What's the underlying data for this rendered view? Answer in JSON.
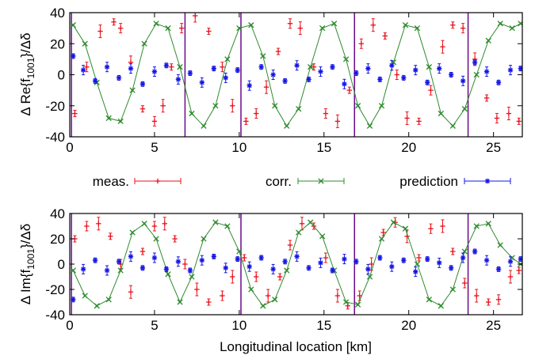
{
  "colors": {
    "meas": "#e8121c",
    "corr": "#2e8b2e",
    "prediction": "#1414e6",
    "vline": "#6a0a8a"
  },
  "legend": {
    "meas": "meas.",
    "corr": "corr.",
    "prediction": "prediction"
  },
  "chart_data": [
    {
      "type": "scatter",
      "panel": "top",
      "ylabel": "Δ Re{f1001}/Δδ",
      "ylabel_main": "Δ Re{f",
      "ylabel_sub": "1001",
      "ylabel_tail": "}/Δδ",
      "xlabel": "",
      "xlim": [
        0,
        26.7
      ],
      "ylim": [
        -40,
        40
      ],
      "xticks": [
        0,
        5,
        10,
        15,
        20,
        25
      ],
      "yticks": [
        -40,
        -20,
        0,
        20,
        40
      ],
      "ip_lines_km": [
        0.1,
        6.8,
        10.1,
        16.8,
        23.5
      ],
      "errorbars": true,
      "series": [
        {
          "name": "meas.",
          "marker": "+",
          "x": [
            0.3,
            1.0,
            1.8,
            2.6,
            3.0,
            3.6,
            4.3,
            5.0,
            5.5,
            6.0,
            6.6,
            7.4,
            8.2,
            9.0,
            9.6,
            10.4,
            11.0,
            11.6,
            12.3,
            13.0,
            13.6,
            14.4,
            15.1,
            15.8,
            16.5,
            17.2,
            17.9,
            18.6,
            19.3,
            19.9,
            20.6,
            21.3,
            22.0,
            22.6,
            23.2,
            23.9,
            24.6,
            25.2,
            25.9,
            26.5
          ],
          "y": [
            -25,
            5,
            28,
            34,
            30,
            8,
            -22,
            -30,
            -20,
            5,
            30,
            38,
            28,
            5,
            -20,
            -30,
            -25,
            -8,
            15,
            33,
            30,
            5,
            -25,
            -30,
            -10,
            20,
            32,
            25,
            0,
            -28,
            -30,
            -10,
            18,
            32,
            30,
            10,
            -15,
            -28,
            -25,
            -30
          ]
        },
        {
          "name": "corr.",
          "marker": "x",
          "x": [
            0.2,
            0.9,
            1.6,
            2.3,
            3.0,
            3.7,
            4.4,
            5.1,
            5.8,
            6.5,
            7.2,
            7.9,
            8.6,
            9.3,
            10.0,
            10.7,
            11.4,
            12.1,
            12.8,
            13.5,
            14.2,
            14.9,
            15.6,
            16.3,
            17.0,
            17.7,
            18.4,
            19.1,
            19.8,
            20.5,
            21.2,
            21.9,
            22.6,
            23.3,
            24.0,
            24.7,
            25.4,
            26.1,
            26.6
          ],
          "y": [
            32,
            20,
            -5,
            -28,
            -30,
            -10,
            20,
            33,
            30,
            5,
            -25,
            -33,
            -20,
            10,
            30,
            32,
            12,
            -20,
            -33,
            -22,
            5,
            30,
            33,
            10,
            -20,
            -33,
            -20,
            8,
            32,
            30,
            5,
            -25,
            -33,
            -22,
            0,
            22,
            33,
            30,
            33
          ]
        },
        {
          "name": "prediction",
          "marker": "*",
          "x": [
            0.2,
            0.8,
            1.5,
            2.2,
            2.9,
            3.6,
            4.3,
            5.0,
            5.7,
            6.4,
            7.1,
            7.8,
            8.5,
            9.2,
            9.9,
            10.6,
            11.3,
            12.0,
            12.7,
            13.4,
            14.1,
            14.8,
            15.5,
            16.2,
            16.9,
            17.6,
            18.3,
            19.0,
            19.7,
            20.4,
            21.1,
            21.8,
            22.5,
            23.2,
            23.9,
            24.6,
            25.3,
            26.0,
            26.6
          ],
          "y": [
            12,
            3,
            -4,
            5,
            -2,
            4,
            -6,
            2,
            6,
            -3,
            1,
            -5,
            4,
            -2,
            3,
            -7,
            5,
            0,
            -4,
            6,
            -3,
            2,
            5,
            -6,
            1,
            4,
            -3,
            6,
            -2,
            3,
            -5,
            4,
            0,
            -4,
            8,
            2,
            -5,
            3,
            4
          ]
        }
      ]
    },
    {
      "type": "scatter",
      "panel": "bottom",
      "ylabel": "Δ Im{f1001}/Δδ",
      "ylabel_main": "Δ Im{f",
      "ylabel_sub": "1001",
      "ylabel_tail": "}/Δδ",
      "xlabel": "Longitudinal location [km]",
      "xlim": [
        0,
        26.7
      ],
      "ylim": [
        -40,
        40
      ],
      "xticks": [
        0,
        5,
        10,
        15,
        20,
        25
      ],
      "yticks": [
        -40,
        -20,
        0,
        20,
        40
      ],
      "ip_lines_km": [
        0.1,
        10.1,
        16.8,
        23.5
      ],
      "errorbars": true,
      "series": [
        {
          "name": "meas.",
          "marker": "+",
          "x": [
            0.3,
            1.0,
            1.7,
            2.4,
            3.0,
            3.6,
            4.3,
            5.0,
            5.6,
            6.2,
            6.8,
            7.5,
            8.2,
            9.0,
            9.6,
            10.3,
            11.0,
            11.7,
            12.4,
            13.0,
            13.7,
            14.4,
            15.1,
            15.8,
            16.4,
            17.1,
            17.8,
            18.5,
            19.2,
            19.9,
            20.6,
            21.3,
            22.0,
            22.6,
            23.3,
            24.0,
            24.7,
            25.3,
            26.0,
            26.5
          ],
          "y": [
            20,
            30,
            32,
            22,
            0,
            -22,
            10,
            30,
            32,
            20,
            0,
            -20,
            -30,
            -25,
            -10,
            5,
            -10,
            -25,
            -10,
            15,
            32,
            30,
            5,
            -25,
            -33,
            -25,
            0,
            25,
            33,
            22,
            5,
            28,
            30,
            10,
            -15,
            -25,
            -30,
            -28,
            -10,
            -5
          ]
        },
        {
          "name": "corr.",
          "marker": "x",
          "x": [
            0.2,
            0.9,
            1.6,
            2.3,
            3.0,
            3.7,
            4.4,
            5.1,
            5.8,
            6.5,
            7.2,
            7.9,
            8.6,
            9.3,
            10.0,
            10.7,
            11.4,
            12.1,
            12.8,
            13.5,
            14.2,
            14.9,
            15.6,
            16.3,
            17.0,
            17.7,
            18.4,
            19.1,
            19.8,
            20.5,
            21.2,
            21.9,
            22.6,
            23.3,
            24.0,
            24.7,
            25.4,
            26.1,
            26.6
          ],
          "y": [
            -5,
            -25,
            -33,
            -28,
            -5,
            25,
            32,
            20,
            -8,
            -30,
            -10,
            20,
            33,
            30,
            10,
            -20,
            -33,
            -28,
            -5,
            25,
            33,
            22,
            -5,
            -30,
            -32,
            -10,
            20,
            33,
            28,
            0,
            -28,
            -33,
            -20,
            10,
            30,
            32,
            15,
            5,
            0
          ]
        },
        {
          "name": "prediction",
          "marker": "*",
          "x": [
            0.2,
            0.8,
            1.5,
            2.2,
            2.9,
            3.6,
            4.3,
            5.0,
            5.7,
            6.4,
            7.1,
            7.8,
            8.5,
            9.2,
            9.9,
            10.6,
            11.3,
            12.0,
            12.7,
            13.4,
            14.1,
            14.8,
            15.5,
            16.2,
            16.9,
            17.6,
            18.3,
            19.0,
            19.7,
            20.4,
            21.1,
            21.8,
            22.5,
            23.2,
            23.9,
            24.6,
            25.3,
            26.0,
            26.6
          ],
          "y": [
            -28,
            -4,
            3,
            -5,
            2,
            6,
            -3,
            5,
            -4,
            2,
            -5,
            3,
            6,
            -3,
            4,
            -2,
            5,
            -4,
            2,
            6,
            -3,
            1,
            -5,
            4,
            2,
            -4,
            5,
            -2,
            3,
            -6,
            4,
            1,
            -3,
            5,
            10,
            3,
            -4,
            2,
            4
          ]
        }
      ]
    }
  ]
}
